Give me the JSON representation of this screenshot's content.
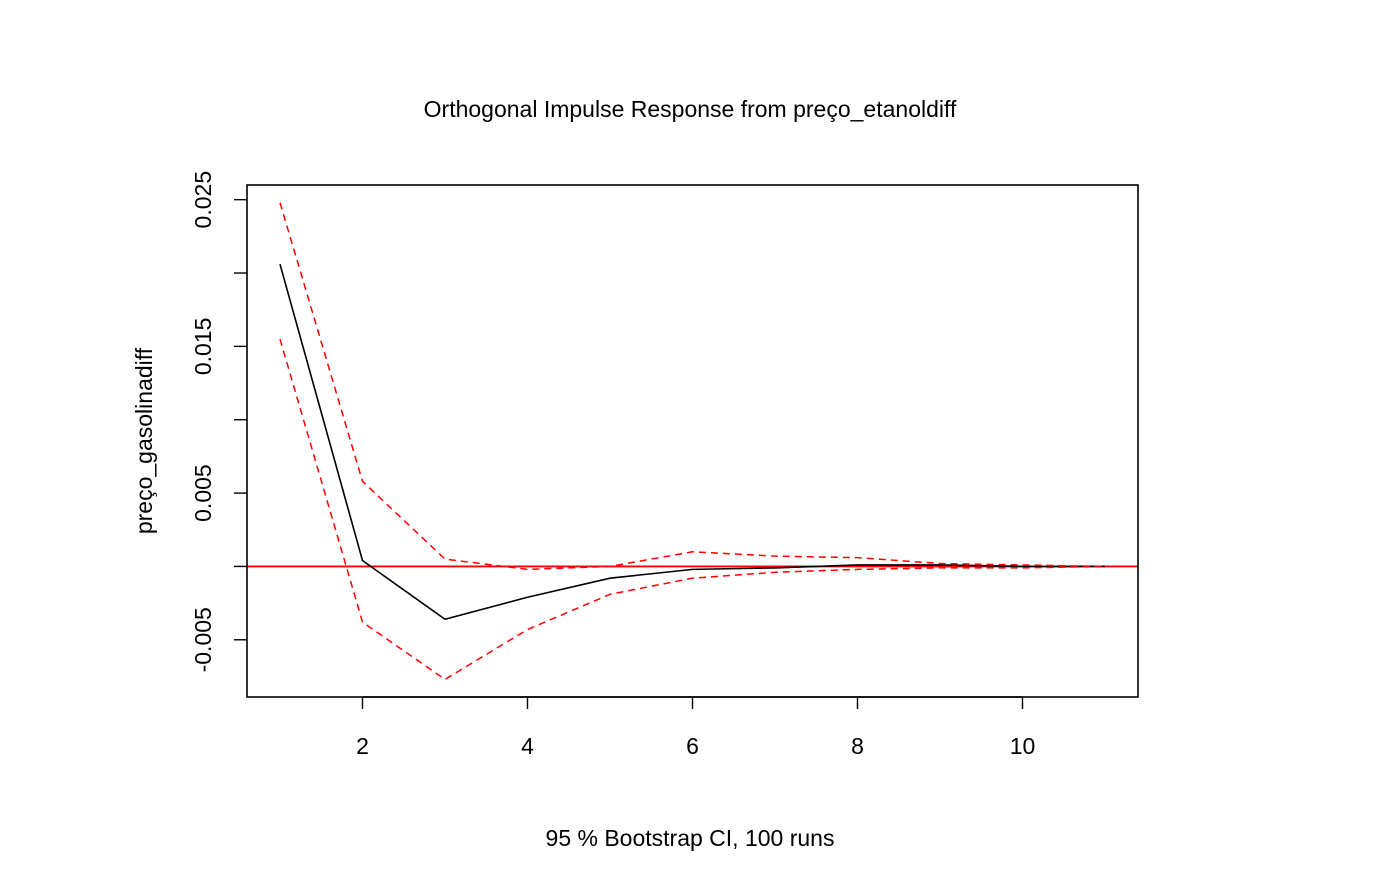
{
  "chart_data": {
    "type": "line",
    "title": "Orthogonal Impulse Response from preço_etanoldiff",
    "xlabel": "95 % Bootstrap CI,  100 runs",
    "ylabel": "preço_gasolinadiff",
    "x": [
      1,
      2,
      3,
      4,
      5,
      6,
      7,
      8,
      9,
      10,
      11
    ],
    "xlim": [
      0.6,
      11.4
    ],
    "ylim": [
      -0.0089,
      0.026
    ],
    "x_ticks": [
      2,
      4,
      6,
      8,
      10
    ],
    "y_ticks": [
      -0.005,
      0,
      0.005,
      0.01,
      0.015,
      0.02,
      0.025
    ],
    "y_tick_labels": [
      {
        "value": -0.005,
        "label": "-0.005"
      },
      {
        "value": 0.005,
        "label": "0.005"
      },
      {
        "value": 0.015,
        "label": "0.015"
      },
      {
        "value": 0.025,
        "label": "0.025"
      }
    ],
    "x_tick_labels": [
      "2",
      "4",
      "6",
      "8",
      "10"
    ],
    "grid": false,
    "reference_line": {
      "y": 0,
      "color": "#ff0000"
    },
    "series": [
      {
        "style": "solid",
        "color": "#000000",
        "values": [
          0.0206,
          0.0004,
          -0.0036,
          -0.0021,
          -0.0008,
          -0.0002,
          -0.0001,
          0.0001,
          0.0001,
          0.0,
          0.0
        ]
      },
      {
        "style": "dashed",
        "color": "#ff0000",
        "values": [
          0.0248,
          0.0058,
          0.0005,
          -0.0002,
          0.0,
          0.001,
          0.0007,
          0.0006,
          0.0002,
          0.0001,
          0.0
        ]
      },
      {
        "style": "dashed",
        "color": "#ff0000",
        "values": [
          0.0155,
          -0.0038,
          -0.0077,
          -0.0043,
          -0.0019,
          -0.0008,
          -0.0004,
          -0.0002,
          -0.0001,
          -0.0001,
          0.0
        ]
      }
    ]
  }
}
